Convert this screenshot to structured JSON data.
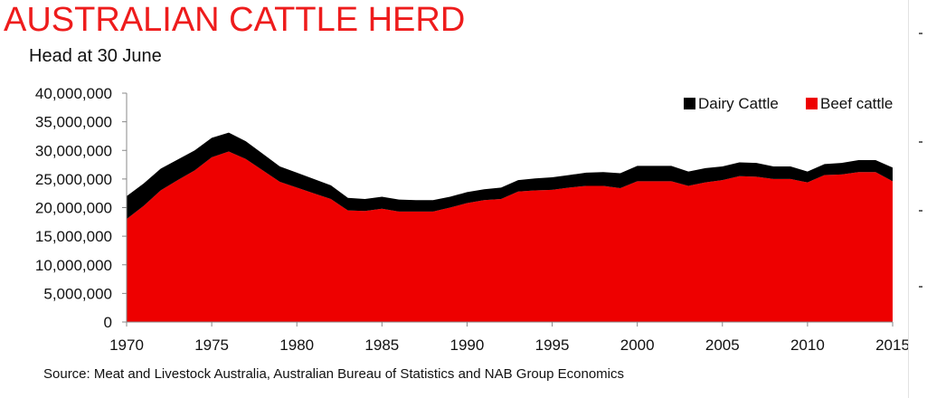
{
  "header": {
    "title": "AUSTRALIAN CATTLE HERD",
    "subtitle": "Head at 30 June"
  },
  "footer": {
    "source": "Source: Meat and Livestock Australia, Australian Bureau of Statistics and NAB Group Economics"
  },
  "colors": {
    "title": "#ee1c1c",
    "beef": "#ee0000",
    "dairy": "#000000",
    "axis": "#888888",
    "text": "#111111"
  },
  "chart_data": {
    "type": "area",
    "stacked": true,
    "title": "AUSTRALIAN CATTLE HERD",
    "subtitle": "Head at 30 June",
    "xlabel": "",
    "ylabel": "",
    "x": [
      1970,
      1971,
      1972,
      1973,
      1974,
      1975,
      1976,
      1977,
      1978,
      1979,
      1980,
      1981,
      1982,
      1983,
      1984,
      1985,
      1986,
      1987,
      1988,
      1989,
      1990,
      1991,
      1992,
      1993,
      1994,
      1995,
      1996,
      1997,
      1998,
      1999,
      2000,
      2001,
      2002,
      2003,
      2004,
      2005,
      2006,
      2007,
      2008,
      2009,
      2010,
      2011,
      2012,
      2013,
      2014,
      2015
    ],
    "xticks": [
      "1970",
      "1975",
      "1980",
      "1985",
      "1990",
      "1995",
      "2000",
      "2005",
      "2010",
      "2015"
    ],
    "yticks": [
      "0",
      "5,000,000",
      "10,000,000",
      "15,000,000",
      "20,000,000",
      "25,000,000",
      "30,000,000",
      "35,000,000",
      "40,000,000"
    ],
    "ylim": [
      0,
      40000000
    ],
    "grid": false,
    "legend": "top-right",
    "series": [
      {
        "name": "Beef cattle",
        "color": "#ee0000",
        "values": [
          18000000,
          20300000,
          23000000,
          24800000,
          26500000,
          28800000,
          29800000,
          28500000,
          26500000,
          24500000,
          23500000,
          22500000,
          21500000,
          19500000,
          19400000,
          19800000,
          19300000,
          19300000,
          19300000,
          20000000,
          20800000,
          21300000,
          21500000,
          22800000,
          23000000,
          23100000,
          23500000,
          23800000,
          23800000,
          23400000,
          24600000,
          24600000,
          24600000,
          23800000,
          24400000,
          24800000,
          25500000,
          25400000,
          25000000,
          25000000,
          24400000,
          25700000,
          25800000,
          26200000,
          26200000,
          24600000
        ]
      },
      {
        "name": "Dairy Cattle",
        "color": "#000000",
        "values": [
          4000000,
          3900000,
          3800000,
          3600000,
          3500000,
          3400000,
          3300000,
          3100000,
          2900000,
          2700000,
          2600000,
          2500000,
          2400000,
          2200000,
          2100000,
          2100000,
          2100000,
          2000000,
          2000000,
          1900000,
          1900000,
          1900000,
          2000000,
          2000000,
          2100000,
          2200000,
          2200000,
          2300000,
          2400000,
          2600000,
          2700000,
          2700000,
          2700000,
          2500000,
          2500000,
          2400000,
          2400000,
          2400000,
          2200000,
          2200000,
          1900000,
          1900000,
          2000000,
          2100000,
          2100000,
          2400000
        ]
      }
    ]
  }
}
